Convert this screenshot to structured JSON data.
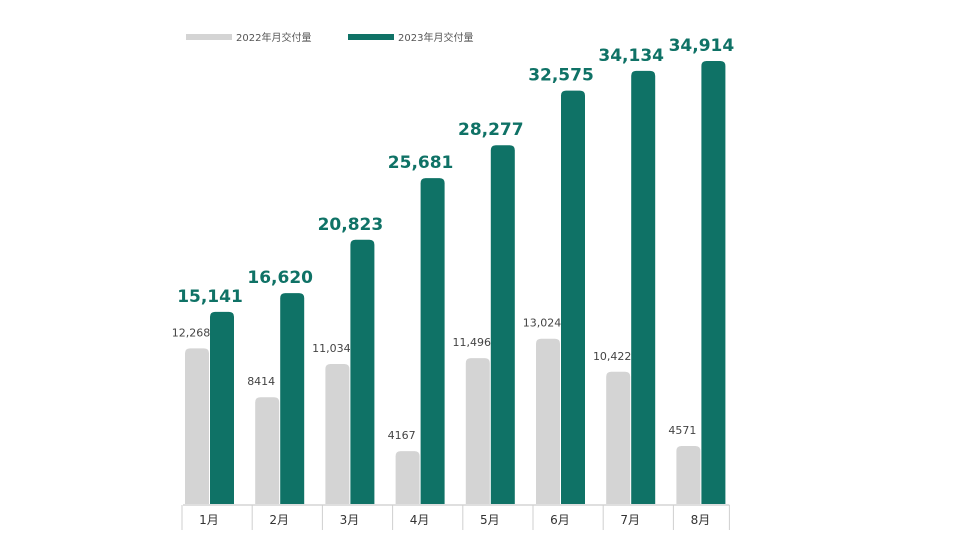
{
  "chart_data": {
    "type": "bar",
    "categories": [
      "1月",
      "2月",
      "3月",
      "4月",
      "5月",
      "6月",
      "7月",
      "8月"
    ],
    "series": [
      {
        "name": "2022年月交付量",
        "values": [
          12268,
          8414,
          11034,
          4167,
          11496,
          13024,
          10422,
          4571
        ],
        "labels": [
          "12,268",
          "8414",
          "11,034",
          "4167",
          "11,496",
          "13,024",
          "10,422",
          "4571"
        ],
        "color": "#d4d4d4"
      },
      {
        "name": "2023年月交付量",
        "values": [
          15141,
          16620,
          20823,
          25681,
          28277,
          32575,
          34134,
          34914
        ],
        "labels": [
          "15,141",
          "16,620",
          "20,823",
          "25,681",
          "28,277",
          "32,575",
          "34,134",
          "34,914"
        ],
        "color": "#0f7266"
      }
    ],
    "title": "",
    "xlabel": "",
    "ylabel": "",
    "ylim": [
      0,
      36000
    ],
    "grid": false,
    "legend": "top-left"
  }
}
